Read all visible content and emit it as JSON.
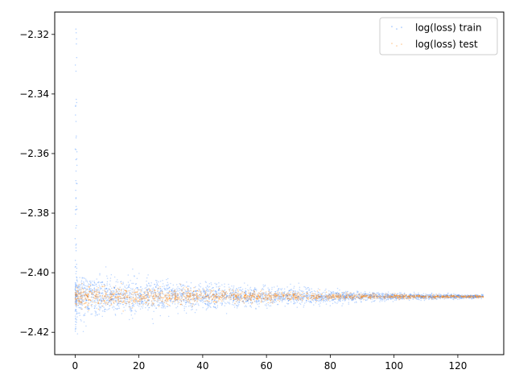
{
  "chart_data": {
    "type": "scatter",
    "title": "",
    "xlabel": "",
    "ylabel": "",
    "xlim": [
      -6.4,
      134.4
    ],
    "ylim": [
      -2.4275,
      -2.3125
    ],
    "x_ticks": [
      0,
      20,
      40,
      60,
      80,
      100,
      120
    ],
    "y_ticks": [
      -2.42,
      -2.4,
      -2.38,
      -2.36,
      -2.34,
      -2.32
    ],
    "x_tick_labels": [
      "0",
      "20",
      "40",
      "60",
      "80",
      "100",
      "120"
    ],
    "y_tick_labels": [
      "−2.42",
      "−2.40",
      "−2.38",
      "−2.36",
      "−2.34",
      "−2.32"
    ],
    "grid": false,
    "legend_position": "top-right",
    "series": [
      {
        "name": "log(loss) train",
        "color": "#1f77ff",
        "x_range": [
          0,
          128
        ],
        "center": -2.408,
        "spread_at_start": 0.006,
        "spread_at_end": 0.0006,
        "start_spike_max": -2.318,
        "start_spike_min": -2.423
      },
      {
        "name": "log(loss) test",
        "color": "#ff8c1a",
        "x_range": [
          0,
          128
        ],
        "center": -2.408,
        "spread_at_start": 0.003,
        "spread_at_end": 0.0004
      }
    ]
  }
}
